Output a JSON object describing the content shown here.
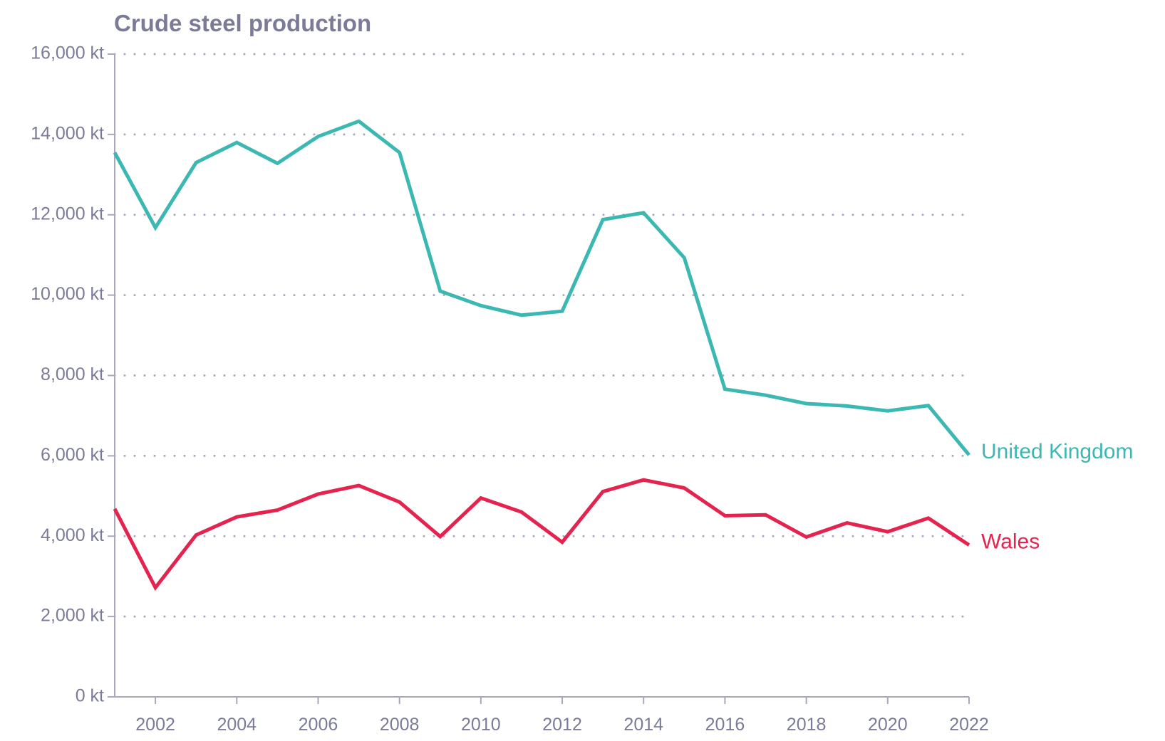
{
  "chart_data": {
    "type": "line",
    "title": "Crude steel production",
    "xlabel": "",
    "ylabel": "",
    "y_unit": "kt",
    "ylim": [
      0,
      16000
    ],
    "xlim": [
      2001,
      2022
    ],
    "yticks": [
      "0 kt",
      "2,000 kt",
      "4,000 kt",
      "6,000 kt",
      "8,000 kt",
      "10,000 kt",
      "12,000 kt",
      "14,000 kt",
      "16,000 kt"
    ],
    "xticks": [
      "2002",
      "2004",
      "2006",
      "2008",
      "2010",
      "2012",
      "2014",
      "2016",
      "2018",
      "2020",
      "2022"
    ],
    "grid": "horizontal dotted",
    "legend": "inline labels at line ends (right)",
    "x": [
      2001,
      2002,
      2003,
      2004,
      2005,
      2006,
      2007,
      2008,
      2009,
      2010,
      2011,
      2012,
      2013,
      2014,
      2015,
      2016,
      2017,
      2018,
      2019,
      2020,
      2021,
      2022
    ],
    "series": [
      {
        "name": "United Kingdom",
        "color": "#3bb8b2",
        "values": [
          13550,
          11680,
          13300,
          13800,
          13280,
          13950,
          14330,
          13550,
          10100,
          9740,
          9500,
          9600,
          11880,
          12050,
          10930,
          7660,
          7510,
          7300,
          7240,
          7120,
          7250,
          6020
        ]
      },
      {
        "name": "Wales",
        "color": "#e4234e",
        "values": [
          4680,
          2720,
          4030,
          4480,
          4650,
          5050,
          5260,
          4850,
          3990,
          4950,
          4600,
          3850,
          5110,
          5400,
          5200,
          4510,
          4530,
          3980,
          4330,
          4110,
          4450,
          3780
        ]
      }
    ]
  }
}
